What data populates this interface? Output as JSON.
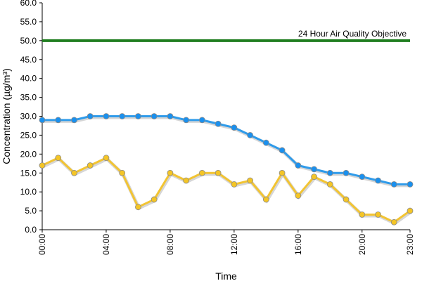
{
  "chart_data": {
    "type": "line",
    "xlabel": "Time",
    "ylabel": "Concentration (µg/m³)",
    "ylim": [
      0,
      60
    ],
    "yticks": [
      "0.0",
      "5.0",
      "10.0",
      "15.0",
      "20.0",
      "25.0",
      "30.0",
      "35.0",
      "40.0",
      "45.0",
      "50.0",
      "55.0",
      "60.0"
    ],
    "xticks": [
      "00:00",
      "04:00",
      "08:00",
      "12:00",
      "16:00",
      "20:00",
      "23:00"
    ],
    "xtick_hours": [
      0,
      4,
      8,
      12,
      16,
      20,
      23
    ],
    "hours": [
      0,
      1,
      2,
      3,
      4,
      5,
      6,
      7,
      8,
      9,
      10,
      11,
      12,
      13,
      14,
      15,
      16,
      17,
      18,
      19,
      20,
      21,
      22,
      23
    ],
    "grid": false,
    "legend": "none",
    "series": [
      {
        "color": "#2f9bea",
        "marker_color": "#1a90ee",
        "values": [
          29,
          29,
          29,
          30,
          30,
          30,
          30,
          30,
          30,
          29,
          29,
          28,
          27,
          25,
          23,
          21,
          17,
          16,
          15,
          15,
          14,
          13,
          12,
          12
        ]
      },
      {
        "color": "#f2c433",
        "marker_color": "#f4c526",
        "values": [
          17,
          19,
          15,
          17,
          19,
          15,
          6,
          8,
          15,
          13,
          15,
          15,
          12,
          13,
          8,
          15,
          9,
          14,
          12,
          8,
          4,
          4,
          2,
          5
        ]
      }
    ],
    "reference_line": {
      "value": 50,
      "label": "24 Hour Air Quality Objective",
      "color": "#1e7d1e"
    }
  }
}
